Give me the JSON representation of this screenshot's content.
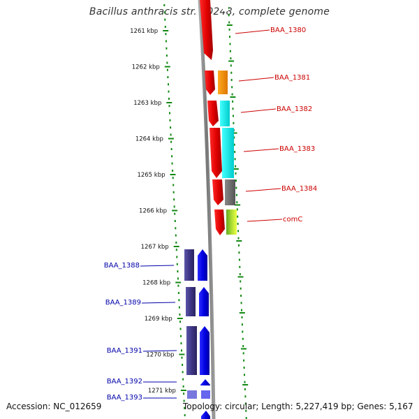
{
  "title": "Bacillus anthracis str. A0248, complete genome",
  "accession": "Accession: NC_012659",
  "summary": "Topology: circular; Length: 5,227,419 bp; Genes: 5,167",
  "ticks": [
    {
      "label": "1261 kbp"
    },
    {
      "label": "1262 kbp"
    },
    {
      "label": "1263 kbp"
    },
    {
      "label": "1264 kbp"
    },
    {
      "label": "1265 kbp"
    },
    {
      "label": "1266 kbp"
    },
    {
      "label": "1267 kbp"
    },
    {
      "label": "1268 kbp"
    },
    {
      "label": "1269 kbp"
    },
    {
      "label": "1270 kbp"
    },
    {
      "label": "1271 kbp"
    }
  ],
  "genes_forward": [
    {
      "name": "BAA_1380",
      "color": "#cc0000",
      "strand": "forward"
    },
    {
      "name": "BAA_1381",
      "color": "#cc0000",
      "strand": "forward"
    },
    {
      "name": "BAA_1382",
      "color": "#cc0000",
      "strand": "forward"
    },
    {
      "name": "BAA_1383",
      "color": "#cc0000",
      "strand": "forward"
    },
    {
      "name": "BAA_1384",
      "color": "#cc0000",
      "strand": "forward"
    },
    {
      "name": "comC",
      "color": "#cc0000",
      "strand": "forward"
    }
  ],
  "genes_reverse": [
    {
      "name": "BAA_1388",
      "color": "#0000aa",
      "strand": "reverse"
    },
    {
      "name": "BAA_1389",
      "color": "#0000aa",
      "strand": "reverse"
    },
    {
      "name": "BAA_1391",
      "color": "#0000aa",
      "strand": "reverse"
    },
    {
      "name": "BAA_1392",
      "color": "#0000aa",
      "strand": "reverse"
    },
    {
      "name": "BAA_1393",
      "color": "#0000aa",
      "strand": "reverse"
    }
  ],
  "colors": {
    "forward_gene": "#ee0000",
    "reverse_gene": "#0000ee",
    "reverse_shade": "#3d3585",
    "backbone": "#888888",
    "ruler": "#118811"
  }
}
